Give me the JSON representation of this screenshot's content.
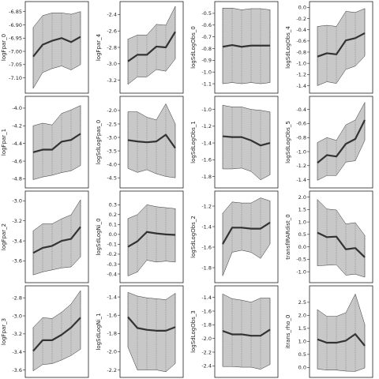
{
  "chart_data": [
    {
      "type": "area",
      "ylabel": "logFpar_0",
      "yticks": [
        "-6.85",
        "-6.90",
        "-6.95",
        "-7.00",
        "-7.05",
        "-7.10"
      ],
      "ylim": [
        -7.14,
        -6.83
      ],
      "x": [
        0,
        1,
        2,
        3,
        4,
        5
      ],
      "mean": [
        -7.02,
        -6.975,
        -6.96,
        -6.95,
        -6.965,
        -6.945
      ],
      "upper": [
        -6.91,
        -6.865,
        -6.855,
        -6.855,
        -6.86,
        -6.85
      ],
      "lower": [
        -7.14,
        -7.08,
        -7.065,
        -7.055,
        -7.07,
        -7.05
      ]
    },
    {
      "type": "area",
      "ylabel": "logFpar_1",
      "yticks": [
        "-4.0",
        "-4.2",
        "-4.4",
        "-4.6",
        "-4.8"
      ],
      "ylim": [
        -4.85,
        -3.92
      ],
      "x": [
        0,
        1,
        2,
        3,
        4,
        5
      ],
      "mean": [
        -4.5,
        -4.47,
        -4.47,
        -4.38,
        -4.36,
        -4.29
      ],
      "upper": [
        -4.2,
        -4.17,
        -4.19,
        -4.06,
        -4.02,
        -3.97
      ],
      "lower": [
        -4.81,
        -4.78,
        -4.76,
        -4.73,
        -4.71,
        -4.65
      ]
    },
    {
      "type": "area",
      "ylabel": "logFpar_2",
      "yticks": [
        "-3.0",
        "-3.2",
        "-3.4",
        "-3.6"
      ],
      "ylim": [
        -3.77,
        -2.95
      ],
      "x": [
        0,
        1,
        2,
        3,
        4,
        5
      ],
      "mean": [
        -3.52,
        -3.47,
        -3.45,
        -3.4,
        -3.38,
        -3.26
      ],
      "upper": [
        -3.3,
        -3.23,
        -3.23,
        -3.18,
        -3.14,
        -2.99
      ],
      "lower": [
        -3.74,
        -3.71,
        -3.69,
        -3.67,
        -3.66,
        -3.56
      ]
    },
    {
      "type": "area",
      "ylabel": "logFpar_3",
      "yticks": [
        "-2.8",
        "-3.0",
        "-3.2",
        "-3.4",
        "-3.6"
      ],
      "ylim": [
        -3.63,
        -2.72
      ],
      "x": [
        0,
        1,
        2,
        3,
        4,
        5
      ],
      "mean": [
        -3.39,
        -3.27,
        -3.27,
        -3.21,
        -3.13,
        -3.02
      ],
      "upper": [
        -3.13,
        -3.02,
        -3.03,
        -2.96,
        -2.87,
        -2.72
      ],
      "lower": [
        -3.61,
        -3.54,
        -3.53,
        -3.49,
        -3.44,
        -3.37
      ]
    },
    {
      "type": "area",
      "ylabel": "logFpar_4",
      "yticks": [
        "-2.4",
        "-2.6",
        "-2.8",
        "-3.0",
        "-3.2"
      ],
      "ylim": [
        -3.3,
        -2.3
      ],
      "x": [
        0,
        1,
        2,
        3,
        4,
        5
      ],
      "mean": [
        -2.97,
        -2.89,
        -2.89,
        -2.79,
        -2.8,
        -2.61
      ],
      "upper": [
        -2.7,
        -2.65,
        -2.65,
        -2.52,
        -2.53,
        -2.3
      ],
      "lower": [
        -3.25,
        -3.16,
        -3.16,
        -3.07,
        -3.09,
        -2.94
      ]
    },
    {
      "type": "area",
      "ylabel": "logSdLogFpas_0",
      "yticks": [
        "-2.0",
        "-2.5",
        "-3.0",
        "-3.5",
        "-4.0",
        "-4.5"
      ],
      "ylim": [
        -4.7,
        -1.65
      ],
      "x": [
        0,
        1,
        2,
        3,
        4,
        5
      ],
      "mean": [
        -3.1,
        -3.15,
        -3.18,
        -3.15,
        -2.9,
        -3.4
      ],
      "upper": [
        -2.05,
        -2.05,
        -2.25,
        -2.35,
        -1.75,
        -2.5
      ],
      "lower": [
        -4.15,
        -4.3,
        -4.2,
        -4.35,
        -4.45,
        -4.5
      ]
    },
    {
      "type": "area",
      "ylabel": "logSdLogNi_0",
      "yticks": [
        "0.3",
        "0.2",
        "0.1",
        "0.0",
        "-0.1",
        "-0.2",
        "-0.3",
        "-0.4"
      ],
      "ylim": [
        -0.44,
        0.39
      ],
      "x": [
        0,
        1,
        2,
        3,
        4,
        5
      ],
      "mean": [
        -0.125,
        -0.07,
        0.025,
        0.01,
        0.0,
        -0.005
      ],
      "upper": [
        0.16,
        0.2,
        0.3,
        0.28,
        0.27,
        0.26
      ],
      "lower": [
        -0.42,
        -0.38,
        -0.26,
        -0.28,
        -0.27,
        -0.28
      ]
    },
    {
      "type": "area",
      "ylabel": "logSdLogNi_1",
      "yticks": [
        "-1.4",
        "-1.6",
        "-1.8",
        "-2.0",
        "-2.2"
      ],
      "ylim": [
        -2.23,
        -1.33
      ],
      "x": [
        0,
        1,
        2,
        3,
        4,
        5
      ],
      "mean": [
        -1.62,
        -1.74,
        -1.76,
        -1.77,
        -1.77,
        -1.73
      ],
      "upper": [
        -1.35,
        -1.39,
        -1.41,
        -1.42,
        -1.43,
        -1.36
      ],
      "lower": [
        -1.95,
        -2.2,
        -2.2,
        -2.2,
        -2.22,
        -2.13
      ]
    },
    {
      "type": "area",
      "ylabel": "logSdLogObs_0",
      "yticks": [
        "-0.5",
        "-0.6",
        "-0.7",
        "-0.8",
        "-0.9",
        "-1.0",
        "-1.1"
      ],
      "ylim": [
        -1.14,
        -0.44
      ],
      "x": [
        0,
        1,
        2,
        3,
        4,
        5
      ],
      "mean": [
        -0.785,
        -0.77,
        -0.785,
        -0.775,
        -0.775,
        -0.775
      ],
      "upper": [
        -0.455,
        -0.455,
        -0.47,
        -0.46,
        -0.46,
        -0.47
      ],
      "lower": [
        -1.1,
        -1.09,
        -1.1,
        -1.09,
        -1.1,
        -1.09
      ]
    },
    {
      "type": "area",
      "ylabel": "logSdLogObs_1",
      "yticks": [
        "-1.0",
        "-1.2",
        "-1.4",
        "-1.6",
        "-1.8"
      ],
      "ylim": [
        -1.88,
        -0.9
      ],
      "x": [
        0,
        1,
        2,
        3,
        4,
        5
      ],
      "mean": [
        -1.32,
        -1.33,
        -1.33,
        -1.37,
        -1.43,
        -1.4
      ],
      "upper": [
        -0.95,
        -0.97,
        -0.97,
        -1.0,
        -1.01,
        -1.03
      ],
      "lower": [
        -1.71,
        -1.71,
        -1.7,
        -1.74,
        -1.84,
        -1.78
      ]
    },
    {
      "type": "area",
      "ylabel": "logSdLogObs_2",
      "yticks": [
        "-1.2",
        "-1.4",
        "-1.6",
        "-1.8"
      ],
      "ylim": [
        -1.9,
        -1.1
      ],
      "x": [
        0,
        1,
        2,
        3,
        4,
        5
      ],
      "mean": [
        -1.57,
        -1.41,
        -1.41,
        -1.42,
        -1.42,
        -1.36
      ],
      "upper": [
        -1.27,
        -1.16,
        -1.17,
        -1.17,
        -1.12,
        -1.15
      ],
      "lower": [
        -1.88,
        -1.65,
        -1.63,
        -1.65,
        -1.71,
        -1.57
      ]
    },
    {
      "type": "area",
      "ylabel": "logSdLogObs_3",
      "yticks": [
        "-1.4",
        "-1.6",
        "-1.8",
        "-2.0",
        "-2.2",
        "-2.4"
      ],
      "ylim": [
        -2.5,
        -1.3
      ],
      "x": [
        0,
        1,
        2,
        3,
        4,
        5
      ],
      "mean": [
        -1.89,
        -1.94,
        -1.94,
        -1.96,
        -1.96,
        -1.87
      ],
      "upper": [
        -1.35,
        -1.42,
        -1.44,
        -1.47,
        -1.41,
        -1.41
      ],
      "lower": [
        -2.41,
        -2.41,
        -2.42,
        -2.42,
        -2.45,
        -2.38
      ]
    },
    {
      "type": "area",
      "ylabel": "logSdLogObs_4",
      "yticks": [
        "0.0",
        "-0.2",
        "-0.4",
        "-0.6",
        "-0.8",
        "-1.0",
        "-1.2",
        "-1.4"
      ],
      "ylim": [
        -1.45,
        0.02
      ],
      "x": [
        0,
        1,
        2,
        3,
        4,
        5
      ],
      "mean": [
        -0.88,
        -0.82,
        -0.84,
        -0.59,
        -0.55,
        -0.46
      ],
      "upper": [
        -0.34,
        -0.32,
        -0.34,
        -0.07,
        -0.09,
        -0.02
      ],
      "lower": [
        -1.4,
        -1.33,
        -1.36,
        -1.11,
        -1.05,
        -0.87
      ]
    },
    {
      "type": "area",
      "ylabel": "logSdLogObs_5",
      "yticks": [
        "-0.4",
        "-0.6",
        "-0.8",
        "-1.0",
        "-1.2",
        "-1.4"
      ],
      "ylim": [
        -1.45,
        -0.28
      ],
      "x": [
        0,
        1,
        2,
        3,
        4,
        5
      ],
      "mean": [
        -1.16,
        -1.05,
        -1.07,
        -0.89,
        -0.82,
        -0.55
      ],
      "upper": [
        -0.87,
        -0.8,
        -0.84,
        -0.62,
        -0.55,
        -0.3
      ],
      "lower": [
        -1.41,
        -1.34,
        -1.34,
        -1.15,
        -1.13,
        -0.84
      ]
    },
    {
      "type": "area",
      "ylabel": "transfIRARdist_0",
      "yticks": [
        "2.0",
        "1.5",
        "1.0",
        "0.5",
        "0.0",
        "-0.5",
        "-1.0"
      ],
      "ylim": [
        -1.25,
        2.05
      ],
      "x": [
        0,
        1,
        2,
        3,
        4,
        5
      ],
      "mean": [
        0.57,
        0.39,
        0.41,
        -0.1,
        -0.05,
        -0.42
      ],
      "upper": [
        1.9,
        1.52,
        1.48,
        0.92,
        0.97,
        0.46
      ],
      "lower": [
        -0.76,
        -0.74,
        -0.72,
        -1.14,
        -1.1,
        -1.22
      ]
    },
    {
      "type": "area",
      "ylabel": "itrans_rho_0",
      "yticks": [
        "2.5",
        "2.0",
        "1.5",
        "1.0",
        "0.5",
        "0.0"
      ],
      "ylim": [
        -0.2,
        2.95
      ],
      "x": [
        0,
        1,
        2,
        3,
        4,
        5
      ],
      "mean": [
        1.08,
        0.95,
        0.95,
        1.03,
        1.28,
        0.83
      ],
      "upper": [
        2.22,
        1.96,
        1.96,
        2.1,
        2.82,
        1.65
      ],
      "lower": [
        -0.06,
        -0.1,
        -0.1,
        -0.14,
        -0.15,
        -0.02
      ]
    }
  ]
}
